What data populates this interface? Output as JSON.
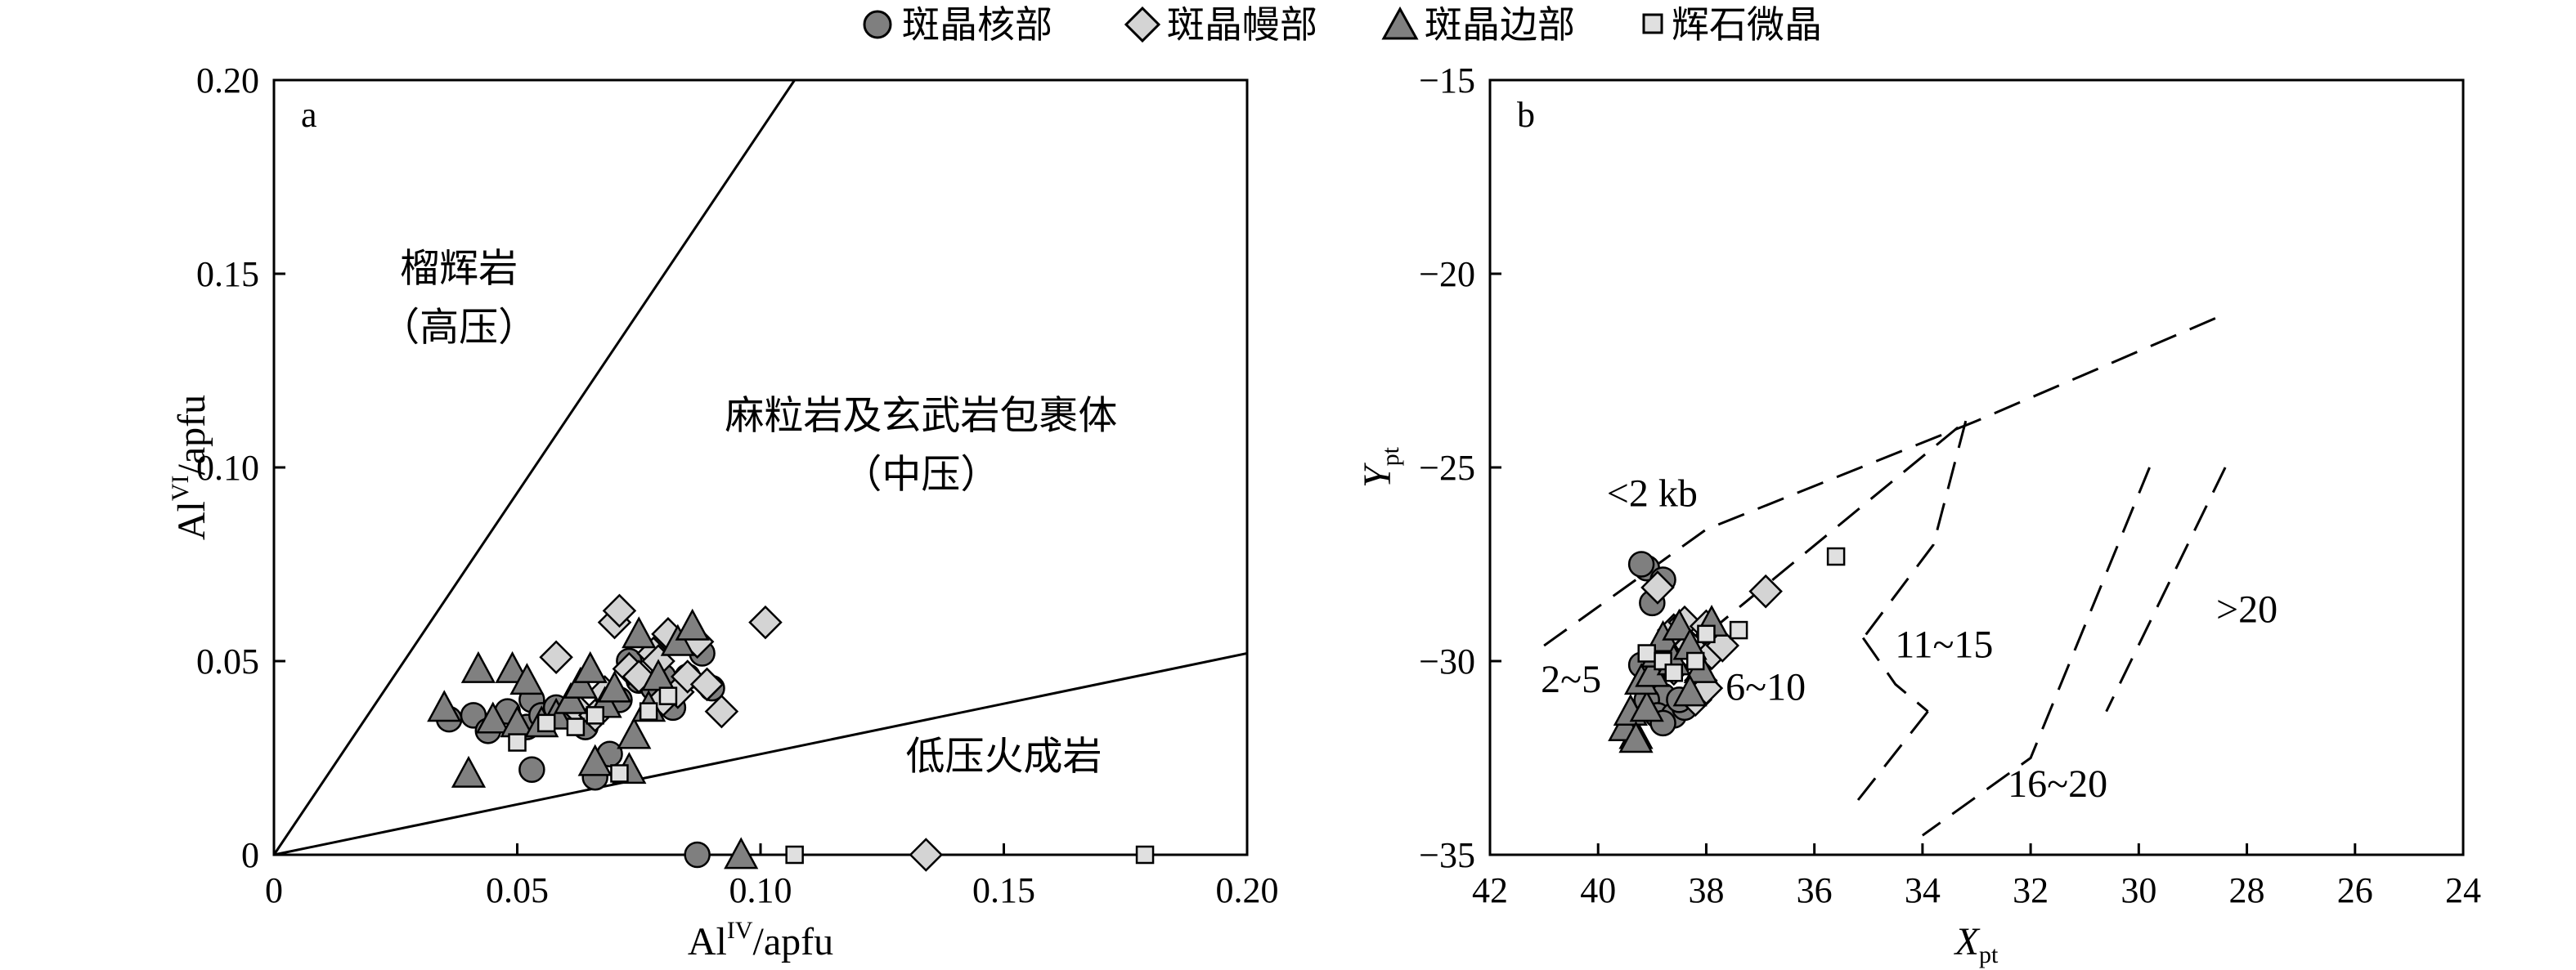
{
  "legend": {
    "core": "斑晶核部",
    "mantle": "斑晶幔部",
    "rim": "斑晶边部",
    "micro": "辉石微晶"
  },
  "colors": {
    "core": "#7f7f7f",
    "mantle": "#d4d4d4",
    "rim": "#808080",
    "micro": "#e0e0e0",
    "stroke": "#000000"
  },
  "chart_data": [
    {
      "type": "scatter",
      "panel_label": "a",
      "xlabel": "Al",
      "xlabel_sup": "IV",
      "xlabel_unit": "/apfu",
      "ylabel": "Al",
      "ylabel_sup": "VI",
      "ylabel_unit": "/apfu",
      "xlim": [
        0,
        0.2
      ],
      "ylim": [
        0,
        0.2
      ],
      "xticks": [
        "0",
        "0.05",
        "0.10",
        "0.15",
        "0.20"
      ],
      "yticks": [
        "0",
        "0.05",
        "0.10",
        "0.15",
        "0.20"
      ],
      "grid": false,
      "legend_position": "top-center",
      "regions": [
        {
          "line1": "榴辉岩",
          "line2": "（高压）",
          "x": 0.038,
          "y": 0.148
        },
        {
          "line1": "麻粒岩及玄武岩包裹体",
          "line2": "（中压）",
          "x": 0.133,
          "y": 0.11
        },
        {
          "line1": "低压火成岩",
          "line2": "",
          "x": 0.15,
          "y": 0.022
        }
      ],
      "boundary_lines": [
        {
          "x": [
            0,
            0.107
          ],
          "y": [
            0,
            0.2
          ]
        },
        {
          "x": [
            0,
            0.2
          ],
          "y": [
            0,
            0.052
          ]
        }
      ],
      "series": [
        {
          "key": "core",
          "marker": "circle",
          "points": [
            [
              0.036,
              0.035
            ],
            [
              0.041,
              0.036
            ],
            [
              0.044,
              0.032
            ],
            [
              0.048,
              0.037
            ],
            [
              0.052,
              0.033
            ],
            [
              0.053,
              0.04
            ],
            [
              0.055,
              0.036
            ],
            [
              0.058,
              0.038
            ],
            [
              0.062,
              0.035
            ],
            [
              0.064,
              0.033
            ],
            [
              0.066,
              0.02
            ],
            [
              0.069,
              0.026
            ],
            [
              0.071,
              0.04
            ],
            [
              0.073,
              0.05
            ],
            [
              0.075,
              0.045
            ],
            [
              0.078,
              0.043
            ],
            [
              0.08,
              0.046
            ],
            [
              0.082,
              0.038
            ],
            [
              0.085,
              0.046
            ],
            [
              0.088,
              0.052
            ],
            [
              0.09,
              0.043
            ],
            [
              0.053,
              0.022
            ],
            [
              0.087,
              0.0
            ]
          ]
        },
        {
          "key": "mantle",
          "marker": "diamond",
          "points": [
            [
              0.058,
              0.051
            ],
            [
              0.062,
              0.038
            ],
            [
              0.066,
              0.036
            ],
            [
              0.068,
              0.042
            ],
            [
              0.07,
              0.06
            ],
            [
              0.071,
              0.063
            ],
            [
              0.073,
              0.048
            ],
            [
              0.075,
              0.046
            ],
            [
              0.078,
              0.052
            ],
            [
              0.079,
              0.05
            ],
            [
              0.08,
              0.04
            ],
            [
              0.081,
              0.057
            ],
            [
              0.083,
              0.042
            ],
            [
              0.085,
              0.046
            ],
            [
              0.087,
              0.055
            ],
            [
              0.089,
              0.044
            ],
            [
              0.092,
              0.037
            ],
            [
              0.101,
              0.06
            ],
            [
              0.134,
              0.0
            ]
          ]
        },
        {
          "key": "rim",
          "marker": "triangle",
          "points": [
            [
              0.035,
              0.038
            ],
            [
              0.04,
              0.021
            ],
            [
              0.042,
              0.048
            ],
            [
              0.045,
              0.035
            ],
            [
              0.049,
              0.048
            ],
            [
              0.05,
              0.034
            ],
            [
              0.052,
              0.045
            ],
            [
              0.055,
              0.034
            ],
            [
              0.058,
              0.036
            ],
            [
              0.061,
              0.04
            ],
            [
              0.063,
              0.044
            ],
            [
              0.065,
              0.048
            ],
            [
              0.066,
              0.024
            ],
            [
              0.068,
              0.039
            ],
            [
              0.07,
              0.043
            ],
            [
              0.073,
              0.022
            ],
            [
              0.074,
              0.031
            ],
            [
              0.075,
              0.057
            ],
            [
              0.077,
              0.038
            ],
            [
              0.079,
              0.046
            ],
            [
              0.083,
              0.055
            ],
            [
              0.086,
              0.059
            ],
            [
              0.096,
              0.0
            ]
          ]
        },
        {
          "key": "micro",
          "marker": "square",
          "points": [
            [
              0.05,
              0.029
            ],
            [
              0.056,
              0.034
            ],
            [
              0.062,
              0.033
            ],
            [
              0.066,
              0.036
            ],
            [
              0.071,
              0.021
            ],
            [
              0.077,
              0.037
            ],
            [
              0.081,
              0.041
            ],
            [
              0.107,
              0.0
            ],
            [
              0.179,
              0.0
            ]
          ]
        }
      ]
    },
    {
      "type": "scatter",
      "panel_label": "b",
      "xlabel": "X",
      "xlabel_sub": "pt",
      "ylabel": "Y",
      "ylabel_sub": "pt",
      "xlim": [
        42,
        24
      ],
      "ylim": [
        -35,
        -15
      ],
      "xticks": [
        "42",
        "40",
        "38",
        "36",
        "34",
        "32",
        "30",
        "28",
        "26",
        "24"
      ],
      "yticks": [
        "−35",
        "−30",
        "−25",
        "−20",
        "−15"
      ],
      "x_axis_reversed": true,
      "grid": false,
      "isobar_labels": [
        {
          "text": "<2 kb",
          "x": 39.0,
          "y": -26.0
        },
        {
          "text": "2~5",
          "x": 40.5,
          "y": -30.8
        },
        {
          "text": "6~10",
          "x": 36.9,
          "y": -31.0
        },
        {
          "text": "11~15",
          "x": 33.6,
          "y": -29.9
        },
        {
          "text": "16~20",
          "x": 31.5,
          "y": -33.5
        },
        {
          "text": ">20",
          "x": 28.0,
          "y": -29.0
        }
      ],
      "dashed_lines": [
        {
          "x": [
            41.0,
            38.0,
            33.0,
            28.5
          ],
          "y": [
            -29.6,
            -26.6,
            -23.8,
            -21.1
          ]
        },
        {
          "x": [
            38.6,
            33.2
          ],
          "y": [
            -30.0,
            -23.8
          ]
        },
        {
          "x": [
            33.2,
            33.8,
            35.2
          ],
          "y": [
            -23.8,
            -27.0,
            -29.6
          ]
        },
        {
          "x": [
            35.1,
            34.5,
            33.9
          ],
          "y": [
            -29.4,
            -30.6,
            -31.3
          ]
        },
        {
          "x": [
            33.9,
            35.2
          ],
          "y": [
            -31.3,
            -33.6
          ]
        },
        {
          "x": [
            29.8,
            32.0,
            34.0
          ],
          "y": [
            -25.0,
            -32.5,
            -34.5
          ]
        },
        {
          "x": [
            28.4,
            30.6
          ],
          "y": [
            -25.0,
            -31.3
          ]
        }
      ],
      "series": [
        {
          "key": "core",
          "marker": "circle",
          "points": [
            [
              39.1,
              -27.6
            ],
            [
              39.2,
              -27.5
            ],
            [
              38.8,
              -27.9
            ],
            [
              39.0,
              -28.5
            ],
            [
              39.2,
              -30.1
            ],
            [
              39.0,
              -30.5
            ],
            [
              38.8,
              -30.9
            ],
            [
              39.1,
              -31.0
            ],
            [
              38.9,
              -31.4
            ],
            [
              38.6,
              -31.4
            ],
            [
              38.8,
              -31.6
            ],
            [
              38.4,
              -31.2
            ],
            [
              38.5,
              -31.0
            ]
          ]
        },
        {
          "key": "mantle",
          "marker": "diamond",
          "points": [
            [
              38.9,
              -28.1
            ],
            [
              38.6,
              -29.2
            ],
            [
              38.4,
              -29.0
            ],
            [
              38.0,
              -29.1
            ],
            [
              38.3,
              -29.6
            ],
            [
              37.9,
              -29.8
            ],
            [
              38.6,
              -30.2
            ],
            [
              38.1,
              -30.5
            ],
            [
              37.7,
              -29.6
            ],
            [
              38.2,
              -31.0
            ],
            [
              38.0,
              -30.7
            ],
            [
              36.9,
              -28.2
            ]
          ]
        },
        {
          "key": "rim",
          "marker": "triangle",
          "points": [
            [
              39.3,
              -31.9
            ],
            [
              39.5,
              -31.7
            ],
            [
              39.4,
              -31.3
            ],
            [
              39.1,
              -31.2
            ],
            [
              39.2,
              -30.5
            ],
            [
              39.0,
              -30.3
            ],
            [
              38.9,
              -29.8
            ],
            [
              38.8,
              -29.4
            ],
            [
              38.5,
              -29.1
            ],
            [
              38.6,
              -30.0
            ],
            [
              38.3,
              -29.6
            ],
            [
              38.1,
              -30.2
            ],
            [
              38.3,
              -30.8
            ],
            [
              37.9,
              -29.0
            ],
            [
              39.3,
              -32.0
            ]
          ]
        },
        {
          "key": "micro",
          "marker": "square",
          "points": [
            [
              39.1,
              -29.8
            ],
            [
              38.8,
              -30.0
            ],
            [
              38.6,
              -30.3
            ],
            [
              38.2,
              -30.0
            ],
            [
              38.0,
              -29.3
            ],
            [
              37.4,
              -29.2
            ],
            [
              35.6,
              -27.3
            ]
          ]
        }
      ]
    }
  ]
}
